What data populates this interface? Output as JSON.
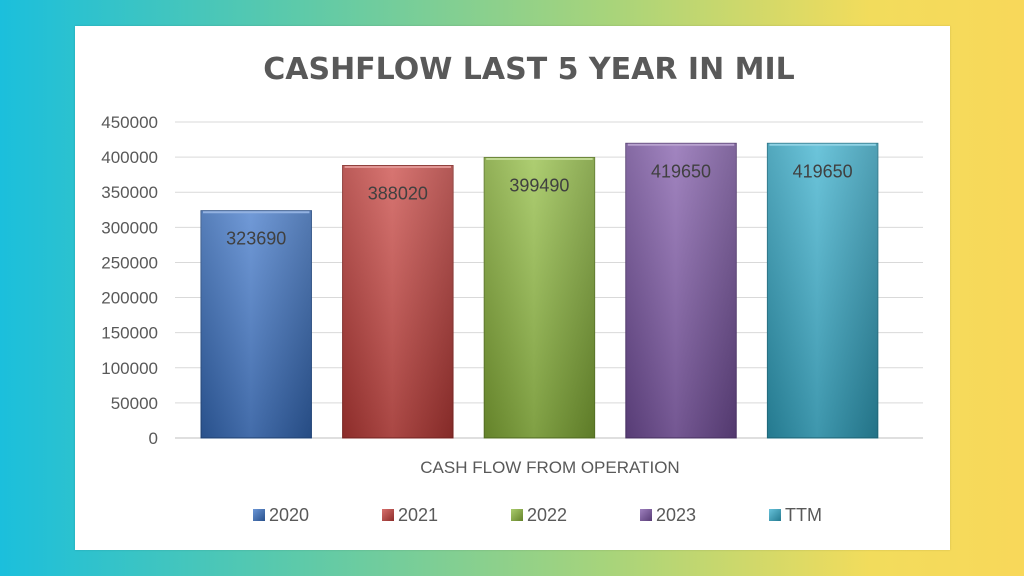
{
  "chart_data": {
    "type": "bar",
    "title": "CASHFLOW LAST 5 YEAR IN MIL",
    "xlabel": "CASH FLOW FROM OPERATION",
    "ylabel": "",
    "categories": [
      "CASH FLOW FROM OPERATION"
    ],
    "series": [
      {
        "name": "2020",
        "values": [
          323690
        ],
        "color": "#3a73c8"
      },
      {
        "name": "2021",
        "values": [
          388020
        ],
        "color": "#c9403c"
      },
      {
        "name": "2022",
        "values": [
          399490
        ],
        "color": "#8fbb3c"
      },
      {
        "name": "2023",
        "values": [
          419650
        ],
        "color": "#7d56a8"
      },
      {
        "name": "TTM",
        "values": [
          419650
        ],
        "color": "#34aecd"
      }
    ],
    "ylim": [
      0,
      450000
    ],
    "yticks": [
      "0",
      "50000",
      "100000",
      "150000",
      "200000",
      "250000",
      "300000",
      "350000",
      "400000",
      "450000"
    ],
    "grid": true,
    "legend": "bottom",
    "data_labels": true
  },
  "colors": {
    "background_gradient": [
      "#1bbfdc",
      "#f8d85a"
    ],
    "card": "#ffffff",
    "gridline": "#d9d9d9",
    "text": "#595959"
  }
}
